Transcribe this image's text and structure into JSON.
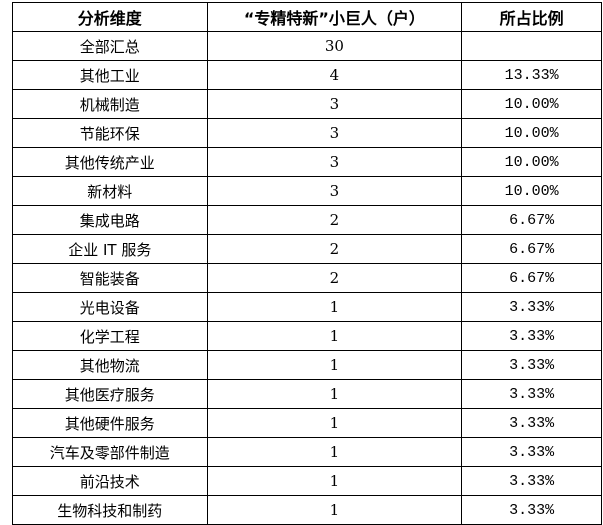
{
  "headers": [
    "分析维度",
    "“专精特新”小巨人（户）",
    "所占比例"
  ],
  "rows": [
    [
      "全部汇总",
      "30",
      ""
    ],
    [
      "其他工业",
      "4",
      "13.33%"
    ],
    [
      "机械制造",
      "3",
      "10.00%"
    ],
    [
      "节能环保",
      "3",
      "10.00%"
    ],
    [
      "其他传统产业",
      "3",
      "10.00%"
    ],
    [
      "新材料",
      "3",
      "10.00%"
    ],
    [
      "集成电路",
      "2",
      "6.67%"
    ],
    [
      "企业 IT 服务",
      "2",
      "6.67%"
    ],
    [
      "智能装备",
      "2",
      "6.67%"
    ],
    [
      "光电设备",
      "1",
      "3.33%"
    ],
    [
      "化学工程",
      "1",
      "3.33%"
    ],
    [
      "其他物流",
      "1",
      "3.33%"
    ],
    [
      "其他医疗服务",
      "1",
      "3.33%"
    ],
    [
      "其他硬件服务",
      "1",
      "3.33%"
    ],
    [
      "汽车及零部件制造",
      "1",
      "3.33%"
    ],
    [
      "前沿技术",
      "1",
      "3.33%"
    ],
    [
      "生物科技和制药",
      "1",
      "3.33%"
    ]
  ]
}
